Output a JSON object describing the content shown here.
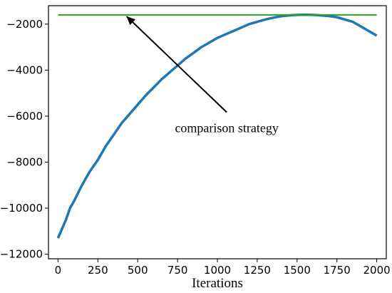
{
  "chart_data": {
    "type": "line",
    "title": "",
    "xlabel": "Iterations",
    "ylabel": "",
    "xlim": [
      -60,
      2060
    ],
    "ylim": [
      -12200,
      -1200
    ],
    "x_ticks": [
      0,
      250,
      500,
      750,
      1000,
      1250,
      1500,
      1750,
      2000
    ],
    "x_tick_labels": [
      "0",
      "250",
      "500",
      "750",
      "1000",
      "1250",
      "1500",
      "1750",
      "2000"
    ],
    "y_ticks": [
      -12000,
      -10000,
      -8000,
      -6000,
      -4000,
      -2000
    ],
    "y_tick_labels": [
      "−12000",
      "−10000",
      "−8000",
      "−6000",
      "−4000",
      "−2000"
    ],
    "grid": false,
    "series": [
      {
        "color": "#1f77b4",
        "x": [
          0,
          25,
          50,
          75,
          100,
          150,
          200,
          250,
          300,
          350,
          400,
          450,
          500,
          550,
          600,
          650,
          700,
          750,
          800,
          850,
          900,
          950,
          1000,
          1050,
          1100,
          1150,
          1200,
          1250,
          1300,
          1350,
          1400,
          1450,
          1500,
          1550,
          1600,
          1650,
          1700,
          1750,
          1800,
          1850,
          1900,
          1950,
          2000
        ],
        "y": [
          -11300,
          -10900,
          -10500,
          -10000,
          -9700,
          -9000,
          -8400,
          -7900,
          -7300,
          -6800,
          -6300,
          -5900,
          -5500,
          -5100,
          -4750,
          -4400,
          -4100,
          -3800,
          -3500,
          -3250,
          -3000,
          -2800,
          -2600,
          -2450,
          -2300,
          -2150,
          -2000,
          -1900,
          -1800,
          -1720,
          -1660,
          -1620,
          -1600,
          -1590,
          -1600,
          -1620,
          -1650,
          -1700,
          -1800,
          -1900,
          -2100,
          -2300,
          -2500
        ]
      },
      {
        "color": "#2ca02c",
        "x": [
          0,
          2000
        ],
        "y": [
          -1600,
          -1600
        ]
      }
    ],
    "annotations": [
      {
        "text": "comparison strategy",
        "x": 430,
        "y": -1600,
        "text_x": 1050,
        "text_y": -6700
      }
    ]
  }
}
